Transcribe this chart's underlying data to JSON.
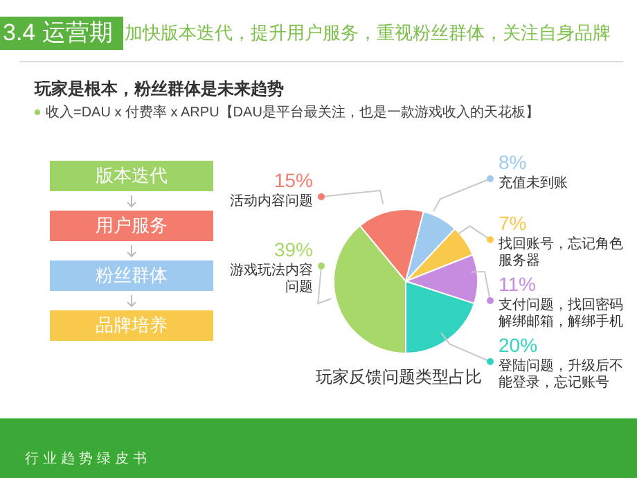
{
  "chart_data": {
    "type": "pie",
    "title": "玩家反馈问题类型占比",
    "categories": [
      "活动内容问题",
      "充值未到账",
      "找回账号，忘记角色服务器",
      "支付问题，找回密码解绑邮箱，解绑手机",
      "登陆问题，升级后不能登录，忘记账号",
      "游戏玩法内容问题"
    ],
    "values": [
      15,
      8,
      7,
      11,
      20,
      39
    ],
    "value_labels": [
      "15%",
      "8%",
      "7%",
      "11%",
      "20%",
      "39%"
    ],
    "colors": [
      "#f47c6c",
      "#9fcaf0",
      "#f8c94a",
      "#c78be0",
      "#2fd3c0",
      "#a8d86a"
    ],
    "annotations": [
      "3.4 运营期",
      "加快版本迭代，提升用户服务，重视粉丝群体，关注自身品牌",
      "玩家是根本，粉丝群体是未来趋势",
      "收入=DAU x 付费率 x ARPU【DAU是平台最关注，也是一款游戏收入的天花板】",
      "版本迭代",
      "用户服务",
      "粉丝群体",
      "品牌培养",
      "行业趋势绿皮书"
    ],
    "legend": "right"
  }
}
